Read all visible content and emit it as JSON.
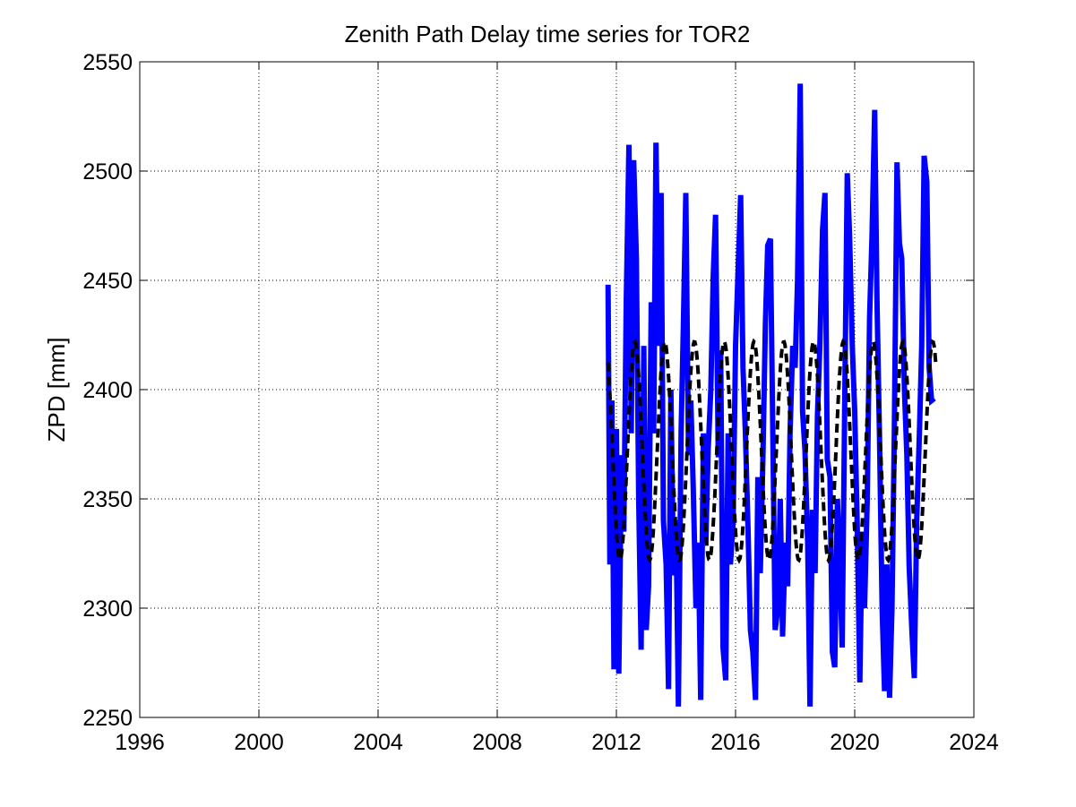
{
  "chart_data": {
    "type": "line",
    "title": "Zenith Path Delay time series for TOR2",
    "xlabel": "",
    "ylabel": "ZPD [mm]",
    "xlim": [
      1996,
      2024
    ],
    "ylim": [
      2250,
      2550
    ],
    "x_ticks": [
      1996,
      2000,
      2004,
      2008,
      2012,
      2016,
      2020,
      2024
    ],
    "y_ticks": [
      2250,
      2300,
      2350,
      2400,
      2450,
      2500,
      2550
    ],
    "grid": true,
    "legend": "none",
    "series": [
      {
        "style": "solid",
        "color": "#0000ff",
        "x": [
          2011.72,
          2011.78,
          2011.85,
          2011.92,
          2012.0,
          2012.08,
          2012.17,
          2012.25,
          2012.33,
          2012.42,
          2012.5,
          2012.58,
          2012.67,
          2012.75,
          2012.83,
          2012.92,
          2013.0,
          2013.08,
          2013.17,
          2013.25,
          2013.33,
          2013.42,
          2013.5,
          2013.58,
          2013.67,
          2013.75,
          2013.83,
          2013.92,
          2014.0,
          2014.08,
          2014.17,
          2014.25,
          2014.33,
          2014.42,
          2014.5,
          2014.58,
          2014.67,
          2014.75,
          2014.83,
          2014.92,
          2015.0,
          2015.08,
          2015.17,
          2015.25,
          2015.33,
          2015.42,
          2015.5,
          2015.58,
          2015.67,
          2015.75,
          2015.83,
          2015.92,
          2016.0,
          2016.08,
          2016.17,
          2016.25,
          2016.33,
          2016.42,
          2016.5,
          2016.58,
          2016.67,
          2016.75,
          2016.83,
          2016.92,
          2017.0,
          2017.08,
          2017.17,
          2017.25,
          2017.33,
          2017.42,
          2017.5,
          2017.58,
          2017.67,
          2017.75,
          2017.83,
          2017.92,
          2018.0,
          2018.08,
          2018.17,
          2018.25,
          2018.33,
          2018.42,
          2018.5,
          2018.58,
          2018.67,
          2018.75,
          2018.83,
          2018.92,
          2019.0,
          2019.08,
          2019.17,
          2019.25,
          2019.33,
          2019.42,
          2019.5,
          2019.58,
          2019.67,
          2019.75,
          2019.83,
          2019.92,
          2020.0,
          2020.08,
          2020.17,
          2020.25,
          2020.33,
          2020.42,
          2020.5,
          2020.58,
          2020.67,
          2020.75,
          2020.83,
          2020.92,
          2021.0,
          2021.08,
          2021.17,
          2021.25,
          2021.33,
          2021.42,
          2021.5,
          2021.58,
          2021.67,
          2021.75,
          2021.83,
          2021.92,
          2022.0,
          2022.08,
          2022.17,
          2022.25,
          2022.33,
          2022.42,
          2022.5,
          2022.58,
          2022.67
        ],
        "y": [
          2448,
          2320,
          2395,
          2272,
          2382,
          2270,
          2370,
          2335,
          2440,
          2512,
          2380,
          2505,
          2460,
          2350,
          2281,
          2420,
          2290,
          2310,
          2440,
          2380,
          2513,
          2420,
          2490,
          2340,
          2320,
          2263,
          2400,
          2315,
          2340,
          2255,
          2380,
          2430,
          2490,
          2370,
          2395,
          2355,
          2300,
          2330,
          2258,
          2380,
          2330,
          2372,
          2400,
          2452,
          2480,
          2369,
          2418,
          2282,
          2267,
          2380,
          2320,
          2340,
          2420,
          2453,
          2489,
          2410,
          2380,
          2335,
          2290,
          2280,
          2258,
          2360,
          2316,
          2370,
          2430,
          2466,
          2469,
          2380,
          2290,
          2300,
          2350,
          2287,
          2330,
          2310,
          2380,
          2420,
          2410,
          2450,
          2540,
          2390,
          2372,
          2330,
          2255,
          2345,
          2316,
          2388,
          2420,
          2473,
          2490,
          2368,
          2360,
          2280,
          2273,
          2350,
          2320,
          2282,
          2400,
          2499,
          2470,
          2420,
          2390,
          2340,
          2266,
          2335,
          2300,
          2350,
          2433,
          2470,
          2528,
          2440,
          2380,
          2300,
          2262,
          2320,
          2259,
          2300,
          2380,
          2504,
          2467,
          2460,
          2400,
          2370,
          2319,
          2290,
          2268,
          2340,
          2380,
          2420,
          2507,
          2495,
          2410,
          2395,
          2396
        ]
      },
      {
        "style": "dashed",
        "color": "#000000",
        "model": "seasonal fit",
        "mean": 2372,
        "amplitude": 50,
        "period_years": 1.0,
        "peak_phase_year": 0.62,
        "x_start": 2011.72,
        "x_end": 2022.72
      }
    ]
  }
}
